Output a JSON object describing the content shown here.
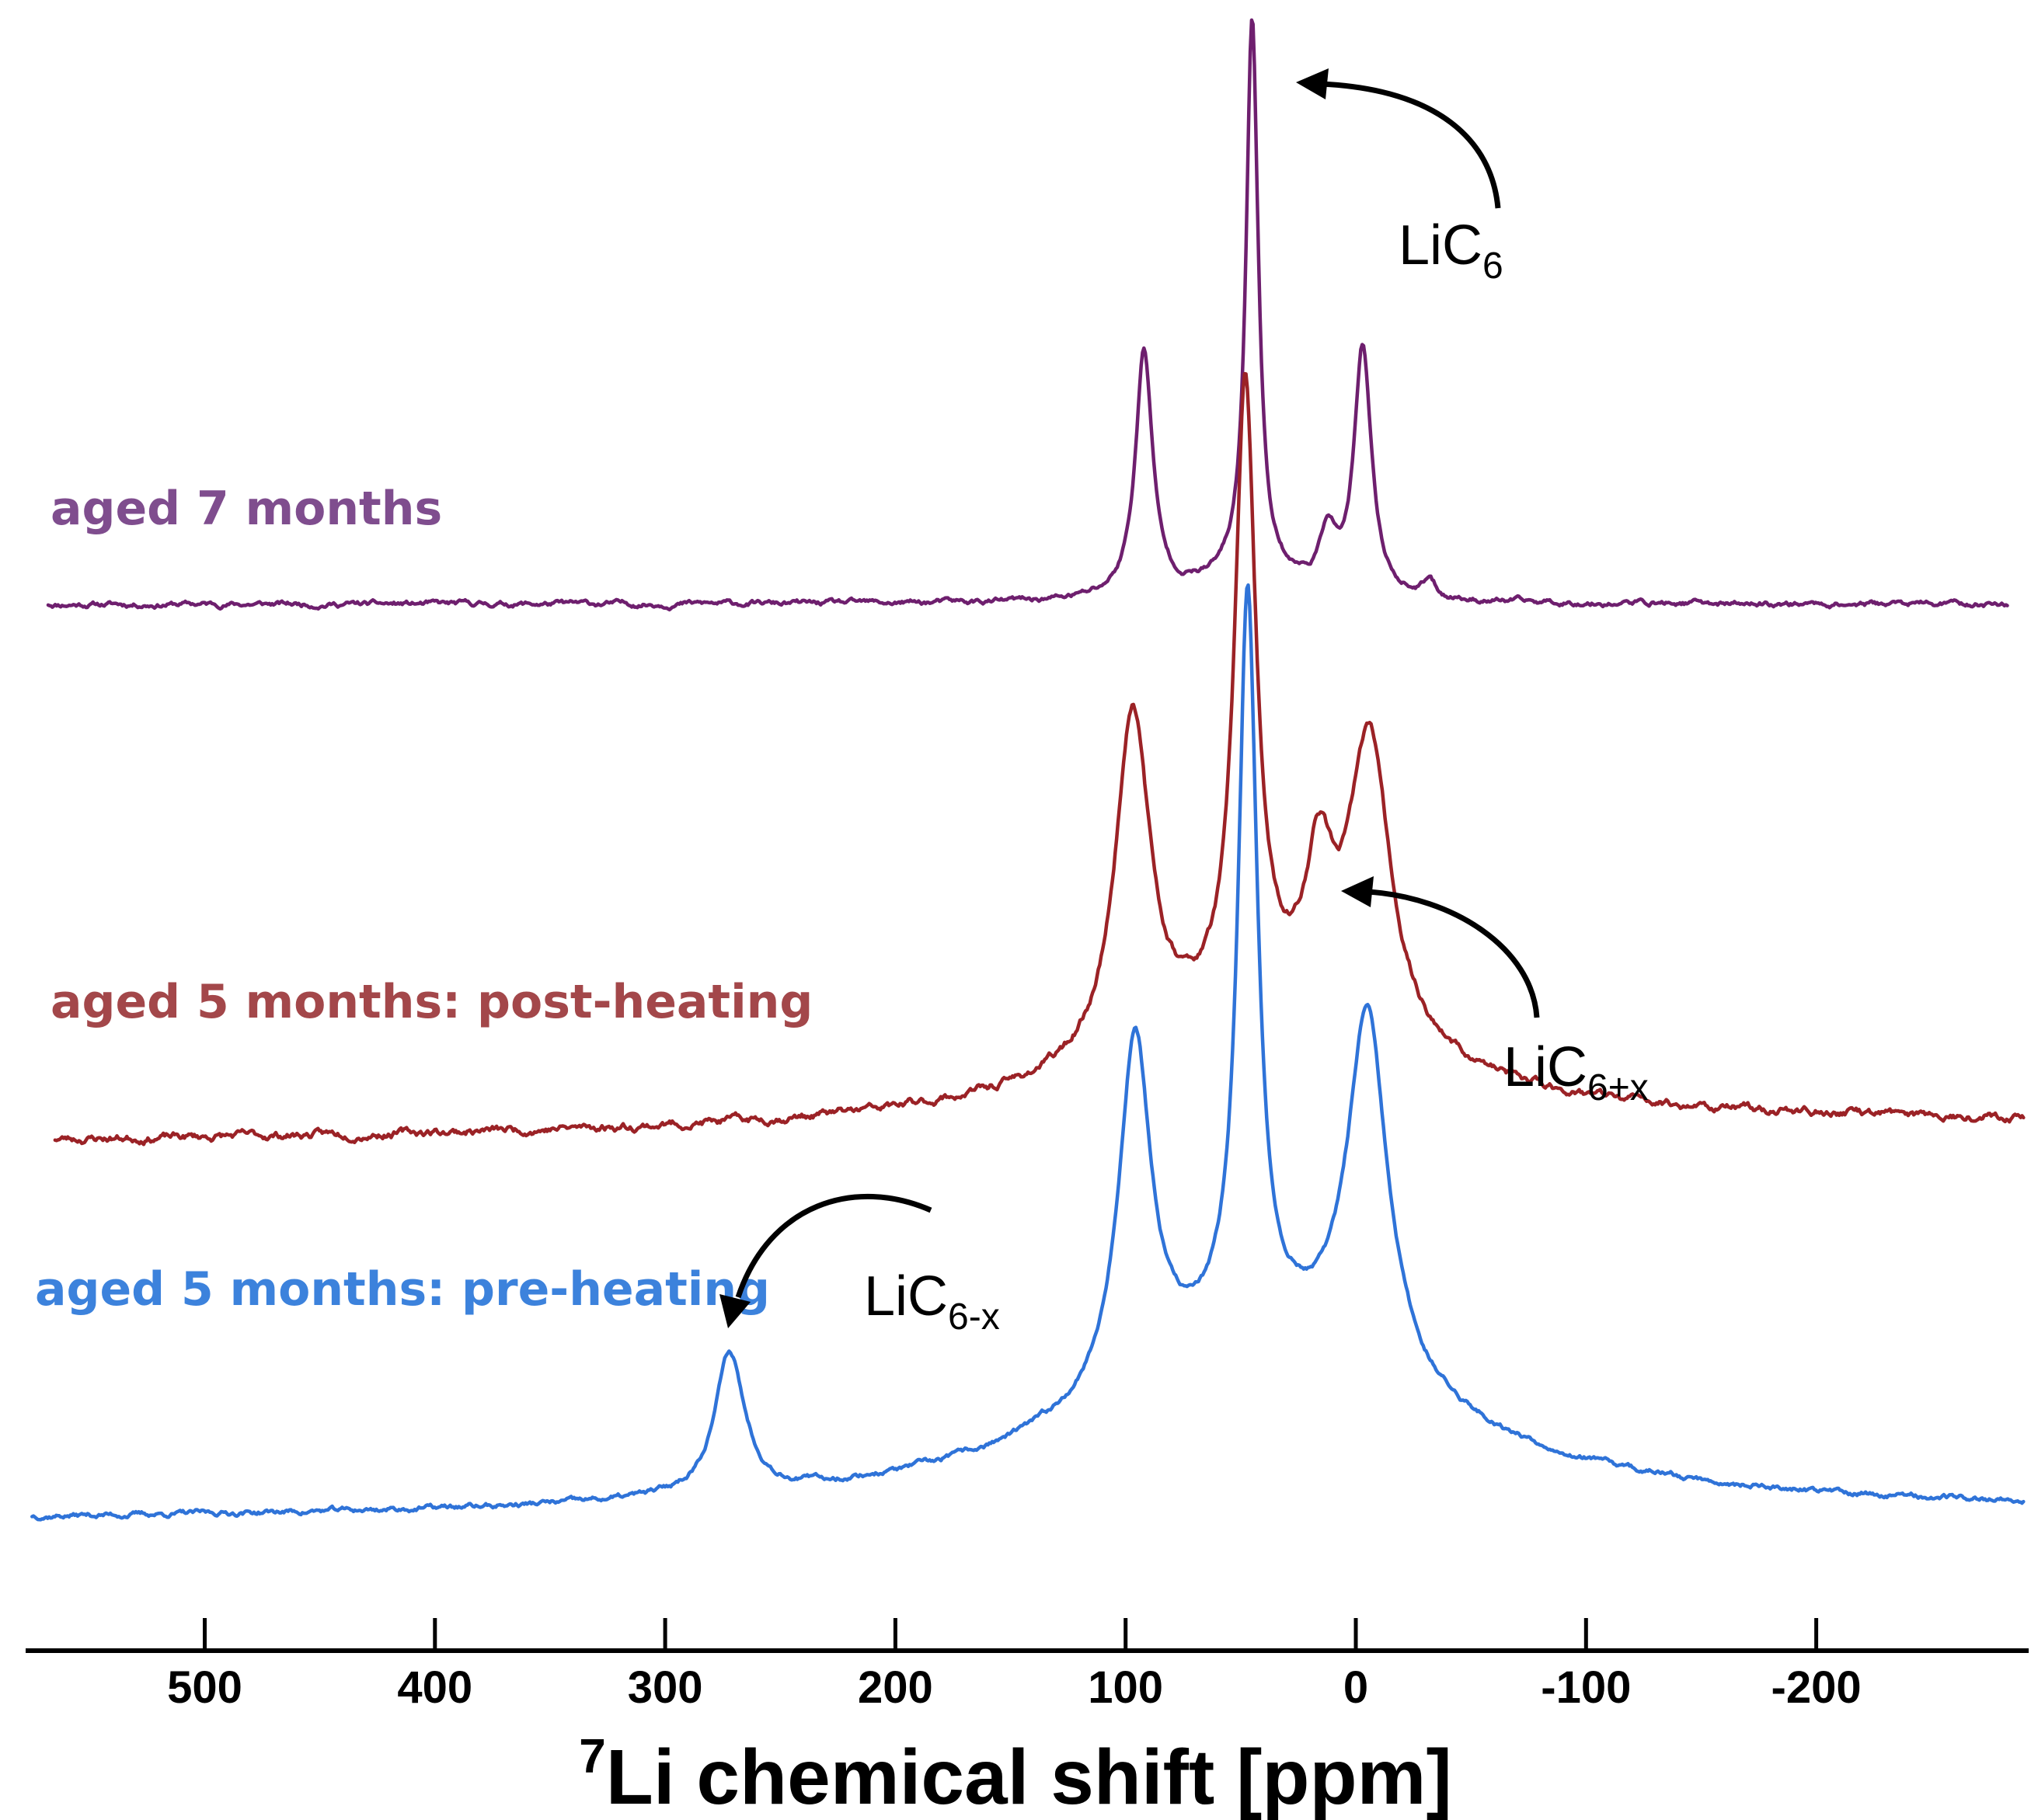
{
  "chart_data": {
    "type": "line",
    "title": "",
    "xlabel_sup": "7",
    "xlabel": "Li chemical shift [ppm]",
    "ylabel": "",
    "xlim": [
      575,
      -290
    ],
    "x_ticks": [
      500,
      400,
      300,
      200,
      100,
      0,
      -100,
      -200
    ],
    "x_tick_labels": [
      "500",
      "400",
      "300",
      "200",
      "100",
      "0",
      "-100",
      "-200"
    ],
    "grid": false,
    "legend": "none",
    "series": [
      {
        "name": "aged 7 months",
        "color": "#6e1f6e",
        "label_color": "#7f4d8e",
        "baseline_left": 0.0,
        "baseline_right": 0.0,
        "x_range": [
          568,
          -283
        ],
        "seed": 11,
        "noise": 0.006,
        "peaks": [
          {
            "center": 45,
            "height": 1.0,
            "width": 3.2
          },
          {
            "center": 92,
            "height": 0.44,
            "width": 4.5
          },
          {
            "center": -3,
            "height": 0.44,
            "width": 4.5
          },
          {
            "center": 12,
            "height": 0.1,
            "width": 4.0
          },
          {
            "center": -32,
            "height": 0.03,
            "width": 3.0
          },
          {
            "center": 45,
            "height": 0.04,
            "width": 30.0
          }
        ]
      },
      {
        "name": "aged 5 months: post-heating",
        "color": "#9b2226",
        "label_color": "#a3474a",
        "baseline_left": 0.0,
        "baseline_right": 0.03,
        "x_range": [
          565,
          -290
        ],
        "seed": 23,
        "noise": 0.008,
        "peaks": [
          {
            "center": 48,
            "height": 1.0,
            "width": 5.5
          },
          {
            "center": 97,
            "height": 0.55,
            "width": 9.0
          },
          {
            "center": -6,
            "height": 0.48,
            "width": 11.0
          },
          {
            "center": 16,
            "height": 0.22,
            "width": 7.0
          },
          {
            "center": 40,
            "height": 0.17,
            "width": 85.0
          }
        ]
      },
      {
        "name": "aged 5 months: pre-heating",
        "color": "#2f73d8",
        "label_color": "#3c82dc",
        "baseline_left": 0.0,
        "baseline_right": 0.01,
        "x_range": [
          575,
          -290
        ],
        "seed": 37,
        "noise": 0.004,
        "peaks": [
          {
            "center": 47,
            "height": 0.88,
            "width": 5.0
          },
          {
            "center": 96,
            "height": 0.42,
            "width": 8.5
          },
          {
            "center": -5,
            "height": 0.43,
            "width": 10.5
          },
          {
            "center": 272,
            "height": 0.17,
            "width": 8.0
          },
          {
            "center": 40,
            "height": 0.21,
            "width": 90.0
          }
        ]
      }
    ],
    "annotations": [
      {
        "base": "LiC",
        "sub": "6",
        "position": "upper-right of central peak"
      },
      {
        "base": "LiC",
        "sub": "6+x",
        "position": "right of post-heating spectrum"
      },
      {
        "base": "LiC",
        "sub": "6-x",
        "position": "above peak near 270 ppm"
      }
    ]
  }
}
